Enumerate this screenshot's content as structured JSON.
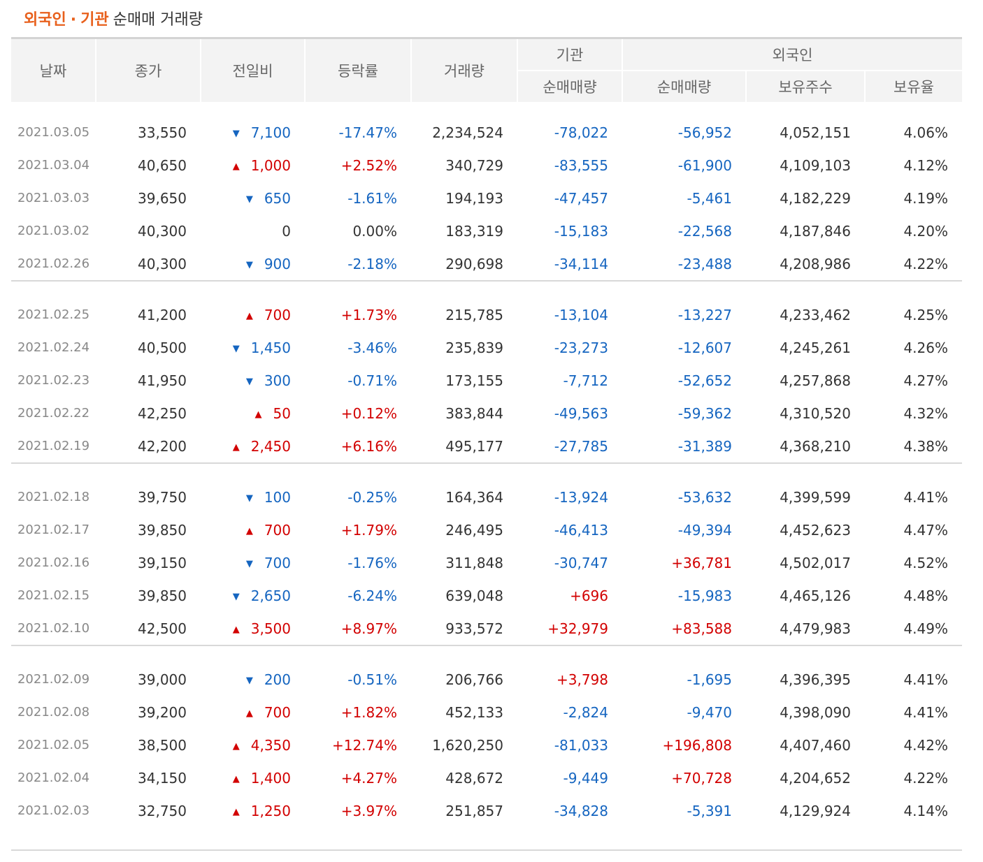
{
  "title": {
    "part1": "외국인",
    "dot": "·",
    "part2": "기관",
    "rest": "순매매 거래량"
  },
  "colors": {
    "up": "#d20000",
    "down": "#1565c0",
    "accent": "#e8601c"
  },
  "headers": {
    "date": "날짜",
    "close": "종가",
    "change": "전일비",
    "rate": "등락률",
    "volume": "거래량",
    "inst_group": "기관",
    "inst_net": "순매매량",
    "foreign_group": "외국인",
    "foreign_net": "순매매량",
    "foreign_holdings": "보유주수",
    "foreign_ratio": "보유율"
  },
  "groups": [
    [
      {
        "date": "2021.03.05",
        "close": "33,550",
        "dir": "down",
        "change": "7,100",
        "rate": "-17.47%",
        "volume": "2,234,524",
        "inst": "-78,022",
        "foreign": "-56,952",
        "holdings": "4,052,151",
        "ratio": "4.06%"
      },
      {
        "date": "2021.03.04",
        "close": "40,650",
        "dir": "up",
        "change": "1,000",
        "rate": "+2.52%",
        "volume": "340,729",
        "inst": "-83,555",
        "foreign": "-61,900",
        "holdings": "4,109,103",
        "ratio": "4.12%"
      },
      {
        "date": "2021.03.03",
        "close": "39,650",
        "dir": "down",
        "change": "650",
        "rate": "-1.61%",
        "volume": "194,193",
        "inst": "-47,457",
        "foreign": "-5,461",
        "holdings": "4,182,229",
        "ratio": "4.19%"
      },
      {
        "date": "2021.03.02",
        "close": "40,300",
        "dir": "none",
        "change": "0",
        "rate": "0.00%",
        "volume": "183,319",
        "inst": "-15,183",
        "foreign": "-22,568",
        "holdings": "4,187,846",
        "ratio": "4.20%"
      },
      {
        "date": "2021.02.26",
        "close": "40,300",
        "dir": "down",
        "change": "900",
        "rate": "-2.18%",
        "volume": "290,698",
        "inst": "-34,114",
        "foreign": "-23,488",
        "holdings": "4,208,986",
        "ratio": "4.22%"
      }
    ],
    [
      {
        "date": "2021.02.25",
        "close": "41,200",
        "dir": "up",
        "change": "700",
        "rate": "+1.73%",
        "volume": "215,785",
        "inst": "-13,104",
        "foreign": "-13,227",
        "holdings": "4,233,462",
        "ratio": "4.25%"
      },
      {
        "date": "2021.02.24",
        "close": "40,500",
        "dir": "down",
        "change": "1,450",
        "rate": "-3.46%",
        "volume": "235,839",
        "inst": "-23,273",
        "foreign": "-12,607",
        "holdings": "4,245,261",
        "ratio": "4.26%"
      },
      {
        "date": "2021.02.23",
        "close": "41,950",
        "dir": "down",
        "change": "300",
        "rate": "-0.71%",
        "volume": "173,155",
        "inst": "-7,712",
        "foreign": "-52,652",
        "holdings": "4,257,868",
        "ratio": "4.27%"
      },
      {
        "date": "2021.02.22",
        "close": "42,250",
        "dir": "up",
        "change": "50",
        "rate": "+0.12%",
        "volume": "383,844",
        "inst": "-49,563",
        "foreign": "-59,362",
        "holdings": "4,310,520",
        "ratio": "4.32%"
      },
      {
        "date": "2021.02.19",
        "close": "42,200",
        "dir": "up",
        "change": "2,450",
        "rate": "+6.16%",
        "volume": "495,177",
        "inst": "-27,785",
        "foreign": "-31,389",
        "holdings": "4,368,210",
        "ratio": "4.38%"
      }
    ],
    [
      {
        "date": "2021.02.18",
        "close": "39,750",
        "dir": "down",
        "change": "100",
        "rate": "-0.25%",
        "volume": "164,364",
        "inst": "-13,924",
        "foreign": "-53,632",
        "holdings": "4,399,599",
        "ratio": "4.41%"
      },
      {
        "date": "2021.02.17",
        "close": "39,850",
        "dir": "up",
        "change": "700",
        "rate": "+1.79%",
        "volume": "246,495",
        "inst": "-46,413",
        "foreign": "-49,394",
        "holdings": "4,452,623",
        "ratio": "4.47%"
      },
      {
        "date": "2021.02.16",
        "close": "39,150",
        "dir": "down",
        "change": "700",
        "rate": "-1.76%",
        "volume": "311,848",
        "inst": "-30,747",
        "foreign": "+36,781",
        "holdings": "4,502,017",
        "ratio": "4.52%"
      },
      {
        "date": "2021.02.15",
        "close": "39,850",
        "dir": "down",
        "change": "2,650",
        "rate": "-6.24%",
        "volume": "639,048",
        "inst": "+696",
        "foreign": "-15,983",
        "holdings": "4,465,126",
        "ratio": "4.48%"
      },
      {
        "date": "2021.02.10",
        "close": "42,500",
        "dir": "up",
        "change": "3,500",
        "rate": "+8.97%",
        "volume": "933,572",
        "inst": "+32,979",
        "foreign": "+83,588",
        "holdings": "4,479,983",
        "ratio": "4.49%"
      }
    ],
    [
      {
        "date": "2021.02.09",
        "close": "39,000",
        "dir": "down",
        "change": "200",
        "rate": "-0.51%",
        "volume": "206,766",
        "inst": "+3,798",
        "foreign": "-1,695",
        "holdings": "4,396,395",
        "ratio": "4.41%"
      },
      {
        "date": "2021.02.08",
        "close": "39,200",
        "dir": "up",
        "change": "700",
        "rate": "+1.82%",
        "volume": "452,133",
        "inst": "-2,824",
        "foreign": "-9,470",
        "holdings": "4,398,090",
        "ratio": "4.41%"
      },
      {
        "date": "2021.02.05",
        "close": "38,500",
        "dir": "up",
        "change": "4,350",
        "rate": "+12.74%",
        "volume": "1,620,250",
        "inst": "-81,033",
        "foreign": "+196,808",
        "holdings": "4,407,460",
        "ratio": "4.42%"
      },
      {
        "date": "2021.02.04",
        "close": "34,150",
        "dir": "up",
        "change": "1,400",
        "rate": "+4.27%",
        "volume": "428,672",
        "inst": "-9,449",
        "foreign": "+70,728",
        "holdings": "4,204,652",
        "ratio": "4.22%"
      },
      {
        "date": "2021.02.03",
        "close": "32,750",
        "dir": "up",
        "change": "1,250",
        "rate": "+3.97%",
        "volume": "251,857",
        "inst": "-34,828",
        "foreign": "-5,391",
        "holdings": "4,129,924",
        "ratio": "4.14%"
      }
    ]
  ]
}
